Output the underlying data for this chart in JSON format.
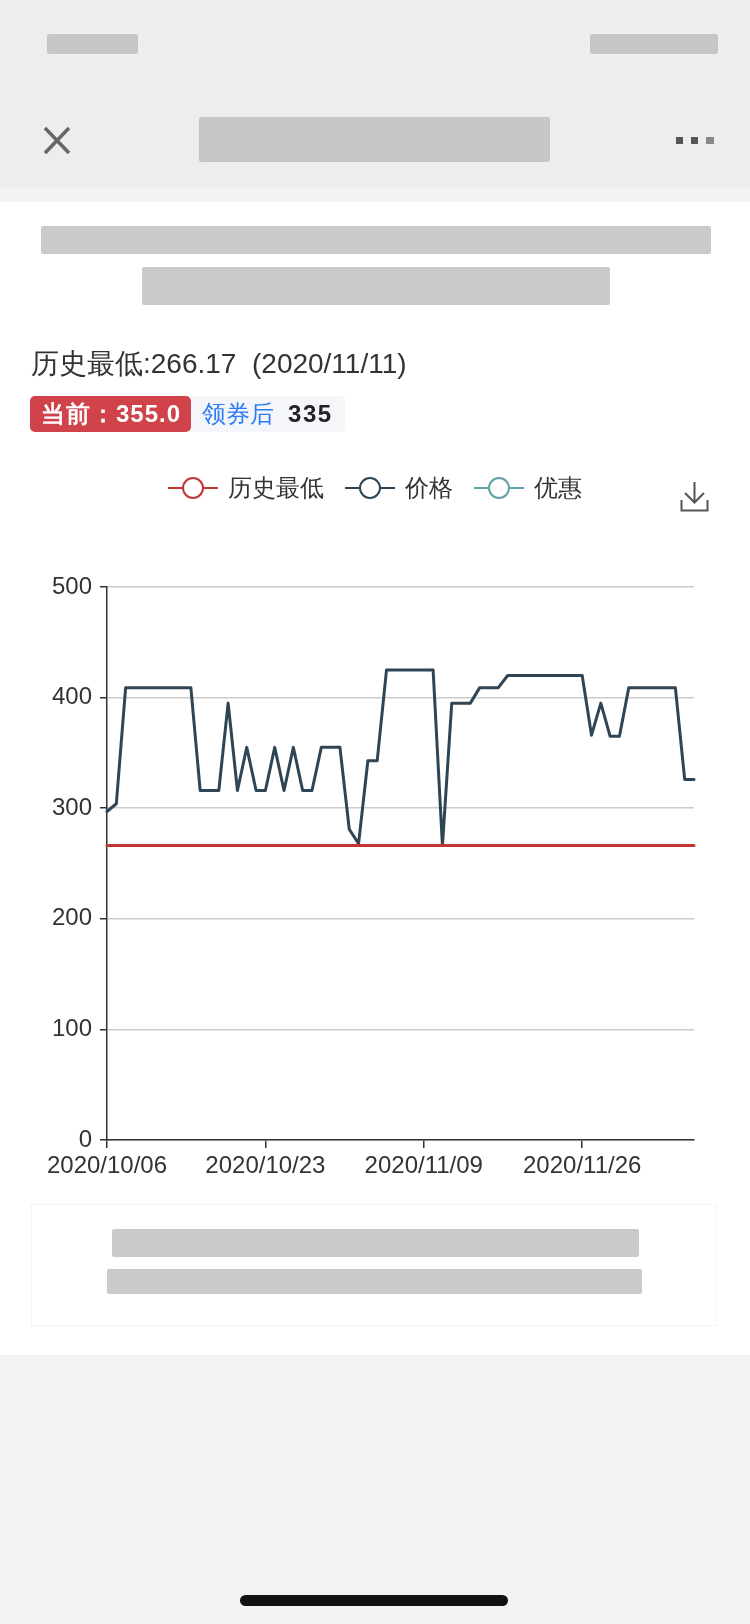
{
  "chart_data": {
    "type": "line",
    "title": "历史最低:266.17  (2020/11/11)",
    "annotations": [
      "当前：355.0",
      "领券后",
      "335"
    ],
    "categories": [
      "2020/10/06",
      null,
      null,
      null,
      null,
      null,
      null,
      null,
      null,
      null,
      null,
      null,
      null,
      null,
      null,
      null,
      null,
      "2020/10/23",
      null,
      null,
      null,
      null,
      null,
      null,
      null,
      null,
      null,
      null,
      null,
      null,
      null,
      null,
      null,
      null,
      "2020/11/09",
      null,
      null,
      null,
      null,
      null,
      null,
      null,
      null,
      null,
      null,
      null,
      null,
      null,
      null,
      null,
      null,
      "2020/11/26",
      null,
      null,
      null,
      null,
      null,
      null,
      null,
      null,
      null,
      null,
      null,
      null
    ],
    "series": [
      {
        "name": "历史最低",
        "color": "#c23531",
        "values": [
          266.17,
          266.17,
          266.17,
          266.17,
          266.17,
          266.17,
          266.17,
          266.17,
          266.17,
          266.17,
          266.17,
          266.17,
          266.17,
          266.17,
          266.17,
          266.17,
          266.17,
          266.17,
          266.17,
          266.17,
          266.17,
          266.17,
          266.17,
          266.17,
          266.17,
          266.17,
          266.17,
          266.17,
          266.17,
          266.17,
          266.17,
          266.17,
          266.17,
          266.17,
          266.17,
          266.17,
          266.17,
          266.17,
          266.17,
          266.17,
          266.17,
          266.17,
          266.17,
          266.17,
          266.17,
          266.17,
          266.17,
          266.17,
          266.17,
          266.17,
          266.17,
          266.17,
          266.17,
          266.17,
          266.17,
          266.17,
          266.17,
          266.17,
          266.17,
          266.17,
          266.17,
          266.17,
          266.17,
          266.17
        ]
      },
      {
        "name": "价格",
        "color": "#2f4554",
        "values": [
          297,
          304,
          409,
          409,
          409,
          409,
          409,
          409,
          409,
          409,
          316,
          316,
          316,
          395,
          316,
          355,
          316,
          316,
          355,
          316,
          355,
          316,
          316,
          355,
          355,
          355,
          281,
          268,
          343,
          343,
          425,
          425,
          425,
          425,
          425,
          425,
          266.17,
          395,
          395,
          395,
          409,
          409,
          409,
          420,
          420,
          420,
          420,
          420,
          420,
          420,
          420,
          420,
          366,
          395,
          365,
          365,
          409,
          409,
          409,
          409,
          409,
          409,
          326,
          326
        ]
      },
      {
        "name": "优惠",
        "color": "#61a0a8",
        "values": [
          null,
          null,
          null,
          null,
          null,
          null,
          null,
          null,
          null,
          null,
          null,
          null,
          null,
          null,
          null,
          null,
          null,
          null,
          null,
          null,
          null,
          null,
          null,
          null,
          null,
          null,
          null,
          null,
          null,
          null,
          null,
          null,
          null,
          null,
          null,
          null,
          null,
          null,
          null,
          null,
          null,
          null,
          null,
          null,
          null,
          null,
          null,
          null,
          null,
          null,
          null,
          null,
          null,
          null,
          null,
          null,
          null,
          null,
          null,
          null,
          null,
          null,
          null,
          null
        ]
      }
    ],
    "ylim": [
      0,
      500
    ],
    "yticks": [
      0,
      100,
      200,
      300,
      400,
      500
    ],
    "grid": "y",
    "legend": "top"
  }
}
